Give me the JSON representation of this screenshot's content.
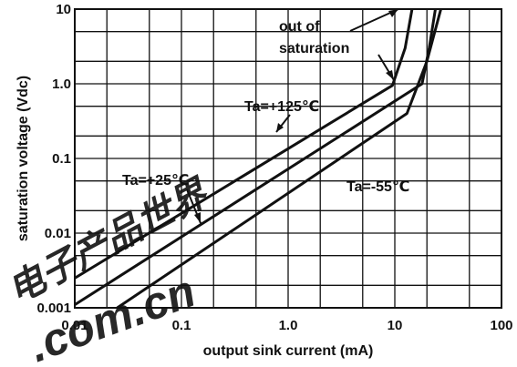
{
  "chart_data": {
    "type": "line",
    "title": "",
    "xlabel": "output sink current (mA)",
    "ylabel": "saturation voltage (Vdc)",
    "xscale": "log",
    "yscale": "log",
    "xlim": [
      0.01,
      100
    ],
    "ylim": [
      0.001,
      10
    ],
    "grid": true,
    "x_ticks": [
      "0.01",
      "0.1",
      "1.0",
      "10",
      "100"
    ],
    "y_ticks": [
      "0.001",
      "0.01",
      "0.1",
      "1.0",
      "10"
    ],
    "series": [
      {
        "name": "Ta=+125℃",
        "x": [
          0.01,
          9.5,
          12.5,
          14.5
        ],
        "y": [
          0.0025,
          0.95,
          3.0,
          10
        ]
      },
      {
        "name": "Ta=+25℃",
        "x": [
          0.01,
          18,
          21,
          24
        ],
        "y": [
          0.0011,
          1.0,
          3.0,
          10
        ]
      },
      {
        "name": "Ta=-55℃",
        "x": [
          0.025,
          13,
          20,
          27
        ],
        "y": [
          0.001,
          0.4,
          2.0,
          10
        ]
      }
    ],
    "annotations": [
      "out of",
      "saturation"
    ]
  },
  "watermark": {
    "text": ".com.cn",
    "glyphs": "电子产品世界",
    "color": "#e82020"
  }
}
